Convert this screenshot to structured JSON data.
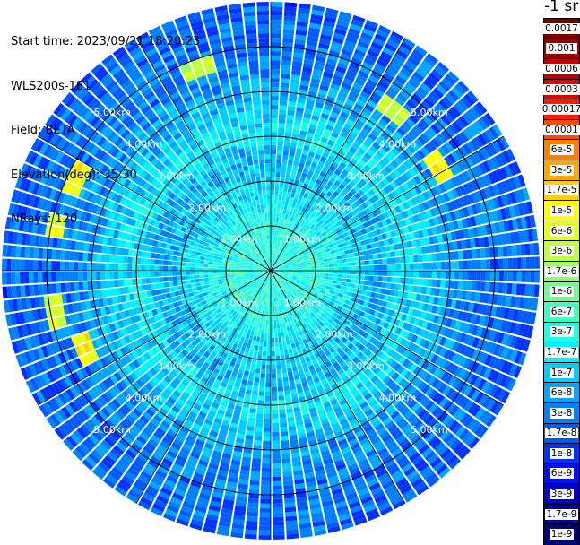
{
  "info": {
    "start_time": "Start time: 2023/09/21 18:20:23",
    "instrument": "WLS200s-181",
    "field": "Field: BETA",
    "elevation": "Elevation(deg): 35.30",
    "nrays": "NRays: 120"
  },
  "colorbar": {
    "unit": "-1 sr",
    "bins": [
      {
        "label": "0.0017",
        "color": "#7a0000"
      },
      {
        "label": "0.001",
        "color": "#990000"
      },
      {
        "label": "0.0006",
        "color": "#c20000"
      },
      {
        "label": "0.0003",
        "color": "#e60000"
      },
      {
        "label": "0.00017",
        "color": "#ff1a00"
      },
      {
        "label": "0.0001",
        "color": "#ff4d00"
      },
      {
        "label": "6e-5",
        "color": "#ff8000"
      },
      {
        "label": "3e-5",
        "color": "#ffa600"
      },
      {
        "label": "1.7e-5",
        "color": "#ffd000"
      },
      {
        "label": "1e-5",
        "color": "#ffff00"
      },
      {
        "label": "6e-6",
        "color": "#e6ff1a"
      },
      {
        "label": "3e-6",
        "color": "#c0ff40"
      },
      {
        "label": "1.7e-6",
        "color": "#99ff66"
      },
      {
        "label": "1e-6",
        "color": "#70ff8f"
      },
      {
        "label": "6e-7",
        "color": "#40ffbf"
      },
      {
        "label": "3e-7",
        "color": "#1affe6"
      },
      {
        "label": "1.7e-7",
        "color": "#00f0ff"
      },
      {
        "label": "1e-7",
        "color": "#00ccff"
      },
      {
        "label": "6e-8",
        "color": "#00a6ff"
      },
      {
        "label": "3e-8",
        "color": "#0080ff"
      },
      {
        "label": "1.7e-8",
        "color": "#005aff"
      },
      {
        "label": "1e-8",
        "color": "#0033ff"
      },
      {
        "label": "6e-9",
        "color": "#0010f0"
      },
      {
        "label": "3e-9",
        "color": "#0000c8"
      },
      {
        "label": "1.7e-9",
        "color": "#00009e"
      },
      {
        "label": "1e-9",
        "color": "#000078"
      }
    ]
  },
  "chart_data": {
    "type": "heatmap",
    "projection": "polar-ppi",
    "field": "BETA",
    "elevation_deg": 35.3,
    "n_rays": 120,
    "range_rings_km": [
      1,
      2,
      3,
      4,
      5
    ],
    "ring_labels": [
      "1.00km",
      "2.00km",
      "3.00km",
      "4.00km",
      "5.00km"
    ],
    "spokes_deg": [
      0,
      30,
      60,
      90,
      120,
      150,
      180,
      210,
      240,
      270,
      300,
      330
    ],
    "max_range_km": 6.0,
    "radial_profile": [
      {
        "range_km": 0.0,
        "value": "3e-7"
      },
      {
        "range_km": 1.0,
        "value": "3e-7"
      },
      {
        "range_km": 1.5,
        "value": "1.7e-7"
      },
      {
        "range_km": 2.5,
        "value": "6e-8"
      },
      {
        "range_km": 3.0,
        "value": "1.7e-7"
      },
      {
        "range_km": 3.5,
        "value": "1e-7"
      },
      {
        "range_km": 4.5,
        "value": "3e-8"
      },
      {
        "range_km": 6.0,
        "value": "1.7e-8"
      }
    ],
    "hotspots": [
      {
        "azimuth_deg": 295,
        "range_km": 4.8,
        "value": "1e-5"
      },
      {
        "azimuth_deg": 282,
        "range_km": 4.9,
        "value": "6e-6"
      },
      {
        "azimuth_deg": 260,
        "range_km": 4.9,
        "value": "6e-6"
      },
      {
        "azimuth_deg": 248,
        "range_km": 4.5,
        "value": "1e-5"
      },
      {
        "azimuth_deg": 58,
        "range_km": 4.4,
        "value": "1e-5"
      },
      {
        "azimuth_deg": 37,
        "range_km": 4.5,
        "value": "3e-6"
      },
      {
        "azimuth_deg": 340,
        "range_km": 4.8,
        "value": "3e-6"
      }
    ]
  }
}
